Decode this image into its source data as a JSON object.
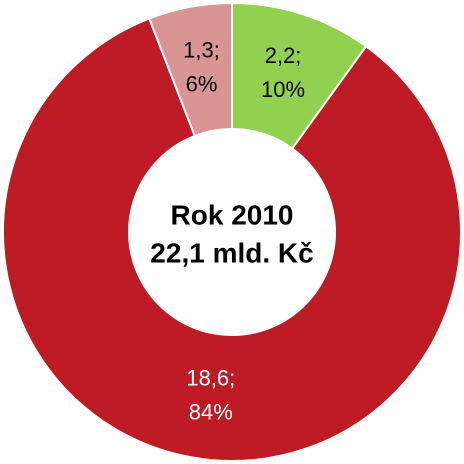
{
  "chart_data": {
    "type": "donut",
    "title": "Rok 2010",
    "subtitle": "22,1 mld. Kč",
    "values": [
      2.2,
      18.6,
      1.3
    ],
    "value_labels": [
      "2,2;",
      "18,6;",
      "1,3;"
    ],
    "percents": [
      10,
      84,
      6
    ],
    "percent_labels": [
      "10%",
      "84%",
      "6%"
    ],
    "colors": [
      "#92d050",
      "#be1b24",
      "#d99594"
    ],
    "label_colors": [
      "#000000",
      "#ffffff",
      "#000000"
    ]
  }
}
